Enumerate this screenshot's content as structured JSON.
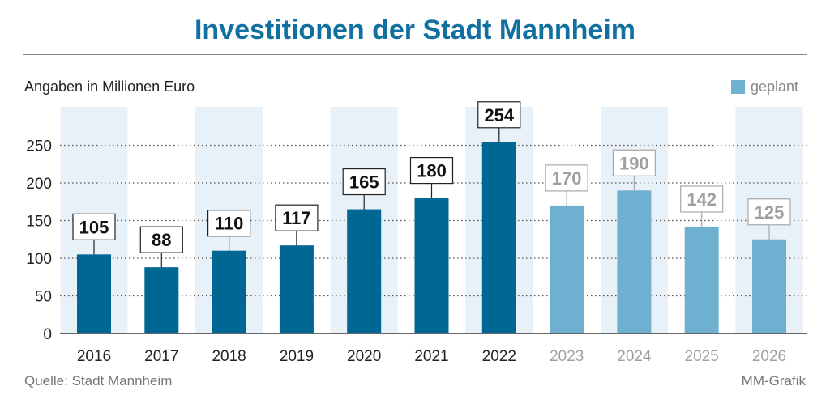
{
  "title": "Investitionen der Stadt Mannheim",
  "subtitle": "Angaben in Millionen Euro",
  "source": "Quelle: Stadt Mannheim",
  "credit": "MM-Grafik",
  "legend": {
    "label": "geplant",
    "color": "#6fb0d0"
  },
  "colors": {
    "actual": "#006694",
    "planned": "#6fb0d0",
    "band": "#e8f0f8",
    "planned_text": "#a0a0a0"
  },
  "chart_data": {
    "type": "bar",
    "title": "Investitionen der Stadt Mannheim",
    "ylabel": "Angaben in Millionen Euro",
    "categories": [
      "2016",
      "2017",
      "2018",
      "2019",
      "2020",
      "2021",
      "2022",
      "2023",
      "2024",
      "2025",
      "2026"
    ],
    "values": [
      105,
      88,
      110,
      117,
      165,
      180,
      254,
      170,
      190,
      142,
      125
    ],
    "planned": [
      false,
      false,
      false,
      false,
      false,
      false,
      false,
      true,
      true,
      true,
      true
    ],
    "yticks": [
      0,
      50,
      100,
      150,
      200,
      250
    ],
    "ylim": [
      0,
      290
    ],
    "grid": true,
    "legend_position": "top-right"
  }
}
